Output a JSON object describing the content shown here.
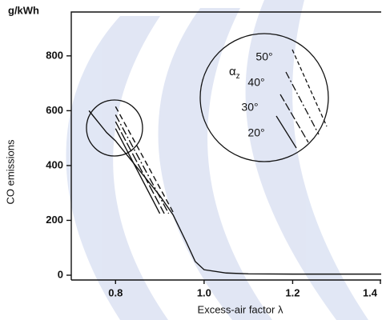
{
  "chart_data": {
    "type": "line",
    "unit_label": "g/kWh",
    "y_label": "CO emissions",
    "x_label": "Excess-air factor λ",
    "inset_symbol": "α",
    "inset_subscript": "z",
    "xlim": [
      0.7,
      1.4
    ],
    "ylim": [
      0,
      960
    ],
    "xticks": [
      0.8,
      {
        "value": 1,
        "label": "1.0"
      },
      1.2,
      1.4
    ],
    "yticks": [
      0,
      200,
      400,
      600,
      800
    ],
    "series": [
      {
        "color": "#111111",
        "dash": "none",
        "x": [
          0.74,
          0.78,
          0.8,
          0.85,
          0.9,
          0.93,
          0.96,
          0.98,
          1.0,
          1.05,
          1.1,
          1.2,
          1.3,
          1.4
        ],
        "values": [
          600,
          520,
          490,
          390,
          290,
          220,
          120,
          50,
          20,
          8,
          5,
          4,
          4,
          4
        ]
      },
      {
        "name": "50°",
        "color": "#111111",
        "dash": "7,4",
        "x": [
          0.8,
          0.93
        ],
        "values": [
          615,
          230
        ]
      },
      {
        "name": "40°",
        "color": "#111111",
        "dash": "10,3,2,3",
        "x": [
          0.8,
          0.92
        ],
        "values": [
          585,
          225
        ]
      },
      {
        "name": "30°",
        "color": "#111111",
        "dash": "12,3",
        "x": [
          0.8,
          0.91
        ],
        "values": [
          560,
          225
        ]
      },
      {
        "name": "20°",
        "color": "#111111",
        "dash": "none",
        "x": [
          0.8,
          0.9
        ],
        "values": [
          535,
          225
        ]
      }
    ]
  }
}
